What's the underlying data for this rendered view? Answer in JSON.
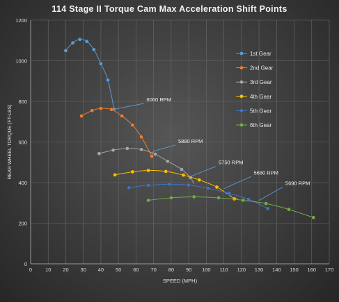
{
  "chart_data": {
    "type": "scatter",
    "title": "114 Stage II Torque Cam Max Acceleration Shift Points",
    "xlabel": "SPEED (MPH)",
    "ylabel": "REAR WHEEL TORQUE (FT-LBS)",
    "xlim": [
      0,
      170
    ],
    "ylim": [
      0,
      1200
    ],
    "xticks": [
      0,
      10,
      20,
      30,
      40,
      50,
      60,
      70,
      80,
      90,
      100,
      110,
      120,
      130,
      140,
      150,
      160,
      170
    ],
    "yticks": [
      0,
      200,
      400,
      600,
      800,
      1000,
      1200
    ],
    "grid": true,
    "legend_position": "upper-right",
    "series": [
      {
        "name": "1st Gear",
        "color": "#5b9bd5",
        "x": [
          20,
          24,
          28,
          32,
          36,
          40,
          44,
          47.5
        ],
        "y": [
          1050,
          1088,
          1105,
          1095,
          1055,
          985,
          905,
          762
        ]
      },
      {
        "name": "2nd Gear",
        "color": "#ed7d31",
        "x": [
          29,
          35,
          40,
          46,
          52,
          58,
          63,
          69
        ],
        "y": [
          728,
          755,
          765,
          760,
          728,
          683,
          625,
          530
        ]
      },
      {
        "name": "3rd Gear",
        "color": "#a5a5a5",
        "x": [
          39,
          47,
          55,
          63,
          71,
          78,
          86,
          91
        ],
        "y": [
          543,
          560,
          568,
          563,
          540,
          505,
          465,
          425
        ]
      },
      {
        "name": "4th Gear",
        "color": "#ffc000",
        "x": [
          48,
          58,
          67,
          77,
          87,
          96,
          106,
          116
        ],
        "y": [
          438,
          453,
          460,
          455,
          437,
          413,
          378,
          320
        ]
      },
      {
        "name": "5th Gear",
        "color": "#4472c4",
        "x": [
          56,
          67,
          79,
          90,
          101,
          113,
          124,
          135
        ],
        "y": [
          375,
          387,
          392,
          388,
          372,
          347,
          318,
          272
        ]
      },
      {
        "name": "6th Gear",
        "color": "#70ad47",
        "x": [
          67,
          80,
          93,
          107,
          121,
          134,
          147,
          161
        ],
        "y": [
          313,
          325,
          330,
          325,
          313,
          297,
          268,
          228
        ]
      }
    ],
    "connectors": [
      {
        "x": [
          47.5,
          50
        ],
        "y": [
          762,
          765
        ],
        "color": "#5b9bd5"
      },
      {
        "x": [
          69,
          70
        ],
        "y": [
          530,
          555
        ],
        "color": "#ed7d31"
      },
      {
        "x": [
          91,
          93
        ],
        "y": [
          425,
          395
        ],
        "color": "#a5a5a5"
      },
      {
        "x": [
          116,
          118
        ],
        "y": [
          320,
          320
        ],
        "color": "#ffc000"
      }
    ],
    "annotations": [
      {
        "text": "6000 RPM",
        "x": 66,
        "y": 800,
        "tx": 50,
        "ty": 765
      },
      {
        "text": "5880 RPM",
        "x": 84,
        "y": 595,
        "tx": 70,
        "ty": 555
      },
      {
        "text": "5750 RPM",
        "x": 107,
        "y": 490,
        "tx": 91,
        "ty": 430
      },
      {
        "text": "5680 RPM",
        "x": 127,
        "y": 440,
        "tx": 110,
        "ty": 370
      },
      {
        "text": "5690 RPM",
        "x": 145,
        "y": 388,
        "tx": 130,
        "ty": 312
      }
    ]
  }
}
